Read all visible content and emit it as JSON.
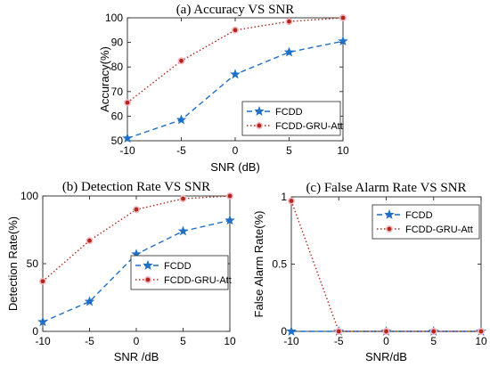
{
  "chart_data": [
    {
      "type": "line",
      "title": "(a) Accuracy VS SNR",
      "xlabel": "SNR (dB)",
      "ylabel": "Accuracy(%)",
      "x": [
        -10,
        -5,
        0,
        5,
        10
      ],
      "xticks": [
        "-10",
        "-5",
        "0",
        "5",
        "10"
      ],
      "yticks": [
        "50",
        "60",
        "70",
        "80",
        "90",
        "100"
      ],
      "xlim": [
        -10,
        10
      ],
      "ylim": [
        50,
        100
      ],
      "legend_position": "bottom-right",
      "series": [
        {
          "name": "FCDD",
          "values": [
            51,
            58.5,
            77,
            86,
            90.5
          ],
          "color": "#1f6fc4",
          "style": "dashed",
          "marker": "star"
        },
        {
          "name": "FCDD-GRU-Att",
          "values": [
            65.5,
            82.5,
            95,
            98.5,
            100
          ],
          "color": "#b0281c",
          "style": "dotted",
          "marker": "circle"
        }
      ]
    },
    {
      "type": "line",
      "title": "(b) Detection Rate VS SNR",
      "xlabel": "SNR /dB",
      "ylabel": "Detection Rate(%)",
      "x": [
        -10,
        -5,
        0,
        5,
        10
      ],
      "xticks": [
        "-10",
        "-5",
        "0",
        "5",
        "10"
      ],
      "yticks": [
        "0",
        "50",
        "100"
      ],
      "xlim": [
        -10,
        10
      ],
      "ylim": [
        0,
        100
      ],
      "legend_position": "right",
      "series": [
        {
          "name": "FCDD",
          "values": [
            7,
            22,
            57,
            74,
            82
          ],
          "color": "#1f6fc4",
          "style": "dashed",
          "marker": "star"
        },
        {
          "name": "FCDD-GRU-Att",
          "values": [
            37,
            67,
            90,
            98,
            100
          ],
          "color": "#b0281c",
          "style": "dotted",
          "marker": "circle"
        }
      ]
    },
    {
      "type": "line",
      "title": "(c) False Alarm Rate VS SNR",
      "xlabel": "SNR/dB",
      "ylabel": "False Alarm Rate(%)",
      "x": [
        -10,
        -5,
        0,
        5,
        10
      ],
      "xticks": [
        "-10",
        "-5",
        "0",
        "5",
        "10"
      ],
      "yticks": [
        "0",
        "0.5",
        "1"
      ],
      "xlim": [
        -10,
        10
      ],
      "ylim": [
        0,
        1
      ],
      "legend_position": "top-right",
      "series": [
        {
          "name": "FCDD",
          "values": [
            0,
            0,
            0,
            0,
            0
          ],
          "color": "#1f6fc4",
          "style": "dashed",
          "marker": "star"
        },
        {
          "name": "FCDD-GRU-Att",
          "values": [
            0.97,
            0,
            0,
            0,
            0
          ],
          "color": "#b0281c",
          "style": "dotted",
          "marker": "circle"
        }
      ]
    }
  ]
}
